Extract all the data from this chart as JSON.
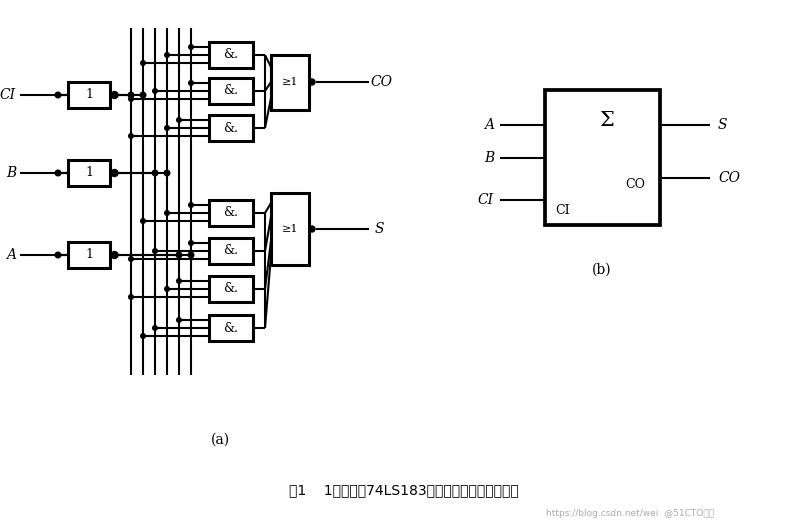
{
  "bg_color": "#ffffff",
  "lw": 1.5,
  "blw": 2.2,
  "title": "图1    1位全加器74LS183的逻辑图和惯用图形符号",
  "label_a": "(a)",
  "label_b": "(b)",
  "watermark": "https://blog.csdn.net/wei  @51CTO博客"
}
